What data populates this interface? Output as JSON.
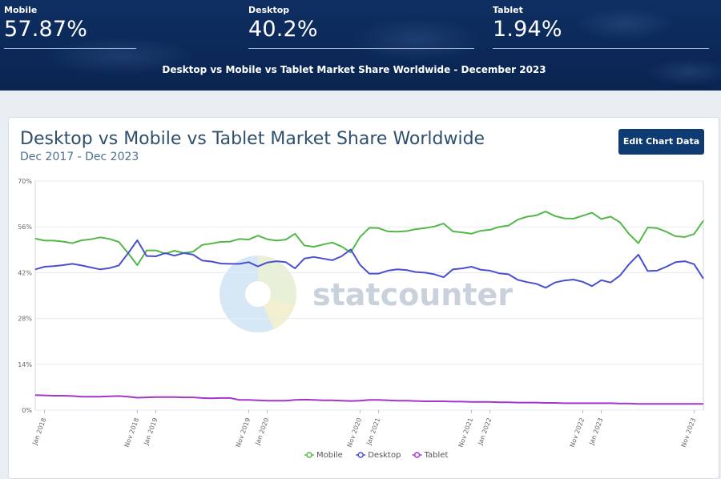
{
  "header": {
    "stats": [
      {
        "label": "Mobile",
        "value": "57.87%"
      },
      {
        "label": "Desktop",
        "value": "40.2%"
      },
      {
        "label": "Tablet",
        "value": "1.94%"
      }
    ],
    "title": "Desktop vs Mobile vs Tablet Market Share Worldwide - December 2023"
  },
  "card": {
    "title": "Desktop vs Mobile vs Tablet Market Share Worldwide",
    "subtitle": "Dec 2017 - Dec 2023",
    "edit_button": "Edit Chart Data",
    "watermark": "statcounter"
  },
  "colors": {
    "mobile": "#53b848",
    "desktop": "#4a4fd1",
    "tablet": "#a437c9"
  },
  "chart_data": {
    "type": "line",
    "title": "Desktop vs Mobile vs Tablet Market Share Worldwide",
    "subtitle": "Dec 2017 - Dec 2023",
    "ylim": [
      0,
      70
    ],
    "y_ticks": [
      "0%",
      "14%",
      "28%",
      "42%",
      "56%",
      "70%"
    ],
    "grid": true,
    "legend_position": "bottom-center",
    "x_tick_labels": [
      "Jan 2018",
      "Nov 2018",
      "Jan 2019",
      "Nov 2019",
      "Jan 2020",
      "Nov 2020",
      "Jan 2021",
      "Nov 2021",
      "Jan 2022",
      "Nov 2022",
      "Jan 2023",
      "Nov 2023"
    ],
    "x_tick_months": [
      1,
      11,
      13,
      23,
      25,
      35,
      37,
      47,
      49,
      59,
      61,
      71
    ],
    "months_count": 73,
    "series": [
      {
        "name": "Mobile",
        "key": "mobile",
        "values": [
          52.4,
          51.8,
          51.8,
          51.5,
          51.0,
          51.9,
          52.2,
          52.8,
          52.3,
          51.4,
          48.0,
          44.3,
          48.8,
          48.8,
          47.8,
          48.7,
          48.0,
          48.4,
          50.5,
          50.9,
          51.4,
          51.5,
          52.3,
          52.1,
          53.3,
          52.2,
          51.8,
          52.1,
          53.9,
          50.3,
          49.9,
          50.6,
          51.2,
          50.0,
          48.2,
          52.9,
          55.7,
          55.6,
          54.6,
          54.5,
          54.7,
          55.3,
          55.6,
          56.1,
          57.0,
          54.6,
          54.3,
          53.9,
          54.8,
          55.1,
          56.0,
          56.4,
          58.2,
          59.1,
          59.5,
          60.7,
          59.3,
          58.6,
          58.5,
          59.4,
          60.3,
          58.4,
          59.1,
          57.4,
          53.8,
          51.0,
          55.8,
          55.6,
          54.5,
          53.1,
          52.9,
          53.8,
          57.9
        ]
      },
      {
        "name": "Desktop",
        "key": "desktop",
        "values": [
          43.0,
          43.8,
          44.0,
          44.3,
          44.7,
          44.2,
          43.6,
          43.0,
          43.4,
          44.2,
          47.9,
          51.9,
          47.1,
          47.0,
          48.0,
          47.2,
          48.0,
          47.5,
          45.7,
          45.4,
          44.8,
          44.7,
          44.7,
          45.2,
          43.9,
          45.1,
          45.5,
          45.2,
          43.3,
          46.3,
          46.8,
          46.3,
          45.8,
          47.0,
          49.1,
          44.4,
          41.7,
          41.7,
          42.6,
          43.0,
          42.8,
          42.2,
          42.0,
          41.5,
          40.6,
          43.0,
          43.3,
          43.8,
          42.9,
          42.6,
          41.8,
          41.5,
          39.8,
          39.1,
          38.6,
          37.4,
          39.0,
          39.6,
          39.9,
          39.2,
          37.9,
          39.7,
          39.0,
          41.1,
          44.6,
          47.5,
          42.5,
          42.6,
          43.8,
          45.2,
          45.5,
          44.6,
          40.2
        ]
      },
      {
        "name": "Tablet",
        "key": "tablet",
        "values": [
          4.6,
          4.5,
          4.4,
          4.4,
          4.3,
          4.1,
          4.1,
          4.1,
          4.2,
          4.3,
          4.1,
          3.8,
          3.9,
          4.0,
          4.0,
          4.0,
          3.9,
          3.9,
          3.7,
          3.6,
          3.7,
          3.7,
          3.1,
          3.1,
          3.0,
          2.9,
          2.9,
          2.9,
          3.1,
          3.2,
          3.1,
          3.0,
          3.0,
          2.9,
          2.8,
          2.9,
          3.1,
          3.1,
          3.0,
          2.9,
          2.9,
          2.8,
          2.7,
          2.7,
          2.7,
          2.6,
          2.6,
          2.5,
          2.5,
          2.5,
          2.4,
          2.4,
          2.3,
          2.3,
          2.3,
          2.2,
          2.2,
          2.1,
          2.1,
          2.1,
          2.1,
          2.1,
          2.1,
          2.0,
          2.0,
          1.9,
          1.9,
          1.9,
          1.9,
          1.9,
          1.9,
          1.9,
          1.9
        ]
      }
    ]
  }
}
